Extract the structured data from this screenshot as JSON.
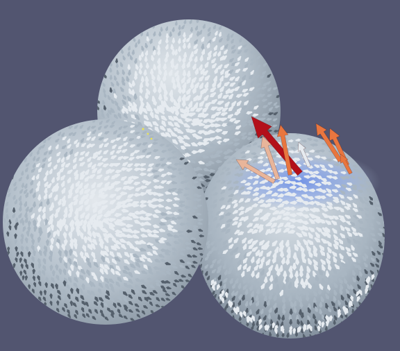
{
  "viewport": {
    "background_color": "#525570",
    "kind": "3d-vector-glyph-render"
  },
  "colors": {
    "sphere_base": "#a9b6c2",
    "sphere_light": "#d9e0e6",
    "sphere_shadow": "#6f7c8a",
    "glyph_light": "#e6ebf0",
    "glyph_dark": "#55606c",
    "contact_blue": "#7a98e0",
    "hot_dark_red": "#b3101a",
    "hot_orange": "#e8763f",
    "warm_peach": "#e8b59a",
    "speck_yellow": "#e9e25a"
  },
  "objects": [
    {
      "name": "sphere-back-top",
      "glyph_field": "surface-vectors"
    },
    {
      "name": "sphere-left",
      "glyph_field": "surface-vectors"
    },
    {
      "name": "sphere-right",
      "glyph_field": "surface-vectors",
      "highlight": "contact-region"
    }
  ],
  "icons": {
    "large_arrow": "arrow-glyph-icon",
    "speck": "speck-icon"
  }
}
